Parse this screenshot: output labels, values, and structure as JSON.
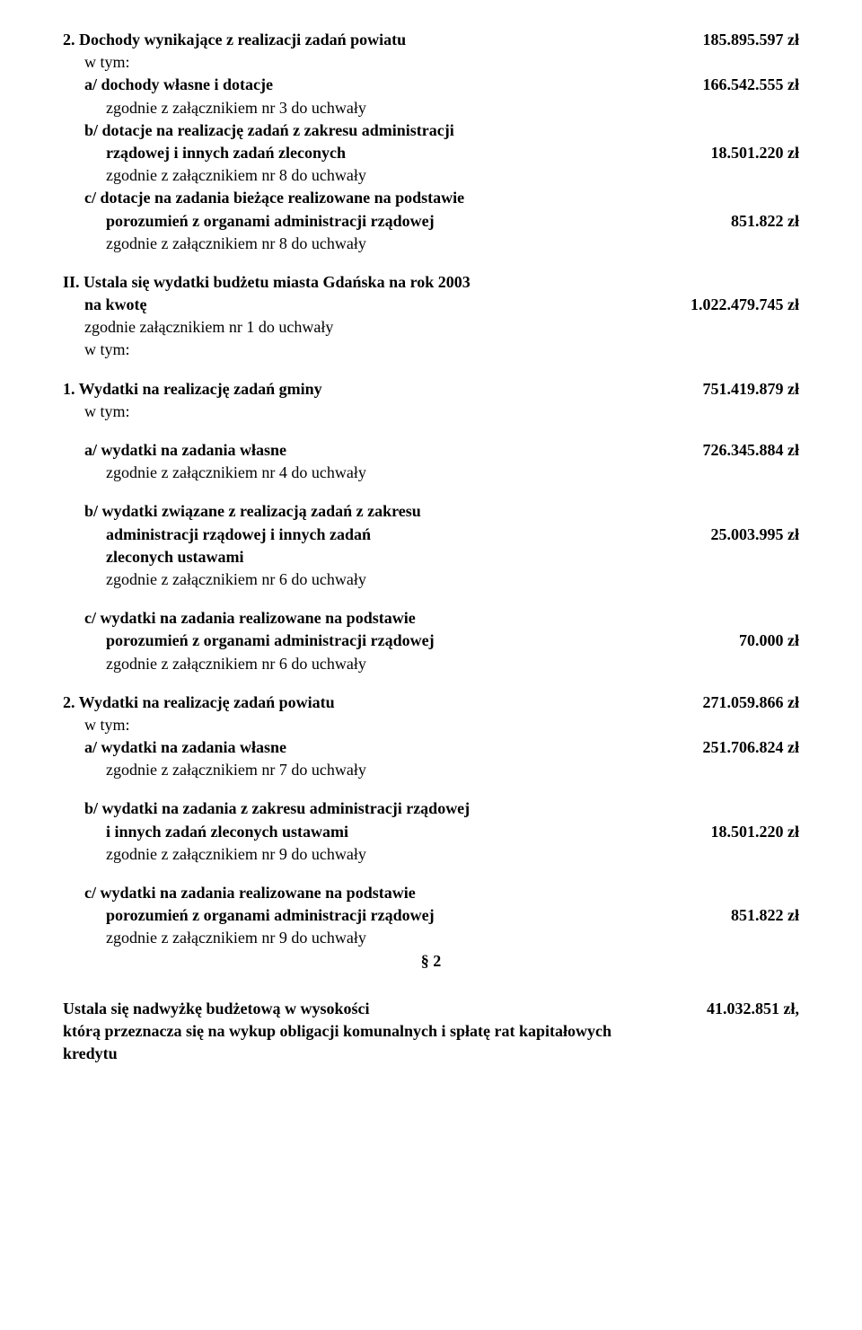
{
  "s2": {
    "title": "2. Dochody wynikające z realizacji zadań  powiatu",
    "title_amount": "185.895.597 zł",
    "wtym": "w tym:",
    "a_label": "a/ dochody własne i dotacje",
    "a_amount": "166.542.555 zł",
    "a_note": "zgodnie z załącznikiem  nr 3 do uchwały",
    "b_label1": "b/ dotacje na realizację zadań z zakresu administracji",
    "b_label2": "rządowej i innych zadań zleconych",
    "b_amount": "18.501.220 zł",
    "b_note": "zgodnie z załącznikiem  nr 8 do uchwały",
    "c_label1": "c/  dotacje na zadania bieżące realizowane na podstawie",
    "c_label2": "porozumień z organami administracji rządowej",
    "c_amount": "851.822 zł",
    "c_note": "zgodnie z załącznikiem  nr 8 do uchwały"
  },
  "II": {
    "title": "II. Ustala się wydatki budżetu miasta Gdańska na rok 2003",
    "na_kwote": "na kwotę",
    "amount": "1.022.479.745 zł",
    "note": "zgodnie załącznikiem nr 1 do uchwały",
    "w_tym": "w tym:"
  },
  "w1": {
    "title": "1. Wydatki na realizację zadań gminy",
    "amount": "751.419.879 zł",
    "w_tym": "w tym:",
    "a_label": "a/ wydatki na zadania własne",
    "a_amount": "726.345.884 zł",
    "a_note": "zgodnie z załącznikiem  nr 4 do uchwały",
    "b_label1": "b/ wydatki związane z realizacją zadań z zakresu",
    "b_label2": "administracji rządowej i innych zadań",
    "b_amount": "25.003.995 zł",
    "b_label3": "zleconych ustawami",
    "b_note": "zgodnie z załącznikiem  nr 6 do uchwały",
    "c_label1": "c/ wydatki na zadania realizowane na podstawie",
    "c_label2": "porozumień z organami administracji rządowej",
    "c_amount": "70.000 zł",
    "c_note": "zgodnie z załącznikiem nr 6 do uchwały"
  },
  "w2": {
    "title": "2.  Wydatki na realizację zadań powiatu",
    "amount": "271.059.866 zł",
    "w_tym": "w tym:",
    "a_label": "a/ wydatki  na zadania własne",
    "a_amount": "251.706.824 zł",
    "a_note": "zgodnie z załącznikiem  nr 7 do uchwały",
    "b_label1": "b/ wydatki na zadania z zakresu administracji rządowej",
    "b_label2": "i innych zadań zleconych ustawami",
    "b_amount": "18.501.220 zł",
    "b_note": "zgodnie z załącznikiem  nr 9 do uchwały",
    "c_label1": "c/ wydatki na zadania realizowane na podstawie",
    "c_label2": "porozumień z organami administracji rządowej",
    "c_amount": "851.822  zł",
    "c_note": "zgodnie z załącznikiem nr 9 do uchwały"
  },
  "para": "§ 2",
  "closing": {
    "line1_left": "Ustala się nadwyżkę budżetową w wysokości",
    "line1_amount": "41.032.851 zł,",
    "line2": "którą przeznacza się na wykup obligacji komunalnych  i spłatę rat kapitałowych",
    "line3": "kredytu"
  }
}
